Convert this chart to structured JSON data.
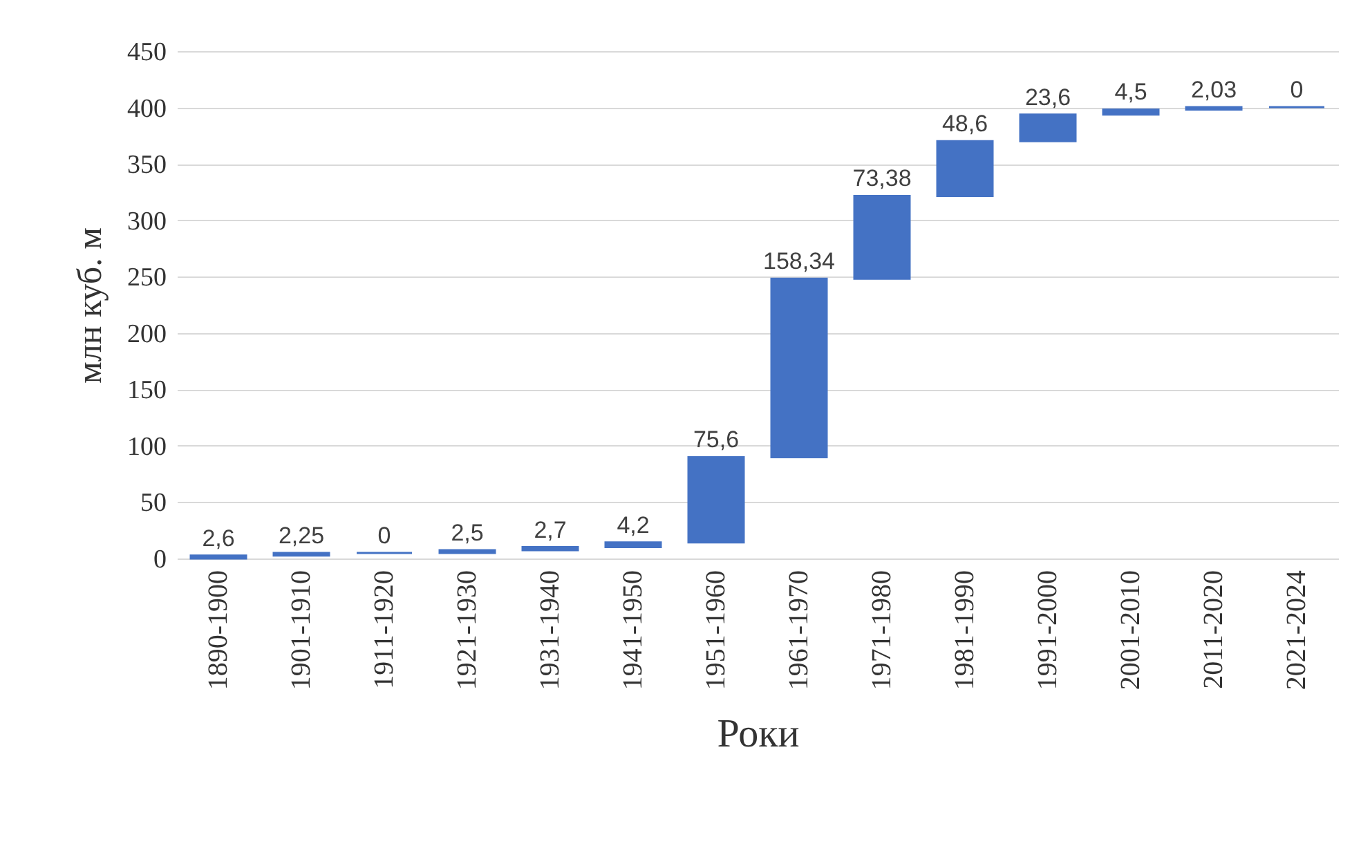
{
  "chart_data": {
    "type": "bar",
    "xlabel": "Роки",
    "ylabel": "млн куб. м",
    "categories": [
      "1890-1900",
      "1901-1910",
      "1911-1920",
      "1921-1930",
      "1931-1940",
      "1941-1950",
      "1951-1960",
      "1961-1970",
      "1971-1980",
      "1981-1990",
      "1991-2000",
      "2001-2010",
      "2011-2020",
      "2021-2024"
    ],
    "values": [
      2.6,
      2.25,
      0,
      2.5,
      2.7,
      4.2,
      75.6,
      158.34,
      73.38,
      48.6,
      23.6,
      4.5,
      2.03,
      0
    ],
    "base": [
      0,
      2.6,
      4.85,
      4.85,
      7.35,
      10.05,
      14.25,
      89.85,
      248.19,
      321.57,
      370.17,
      393.77,
      398.27,
      400.3
    ],
    "value_labels": [
      "2,6",
      "2,25",
      "0",
      "2,5",
      "2,7",
      "4,2",
      "75,6",
      "158,34",
      "73,38",
      "48,6",
      "23,6",
      "4,5",
      "2,03",
      "0"
    ],
    "color": "#4472c4",
    "ylim": [
      0,
      450
    ],
    "yticks": [
      0,
      50,
      100,
      150,
      200,
      250,
      300,
      350,
      400,
      450
    ],
    "grid": "y"
  }
}
